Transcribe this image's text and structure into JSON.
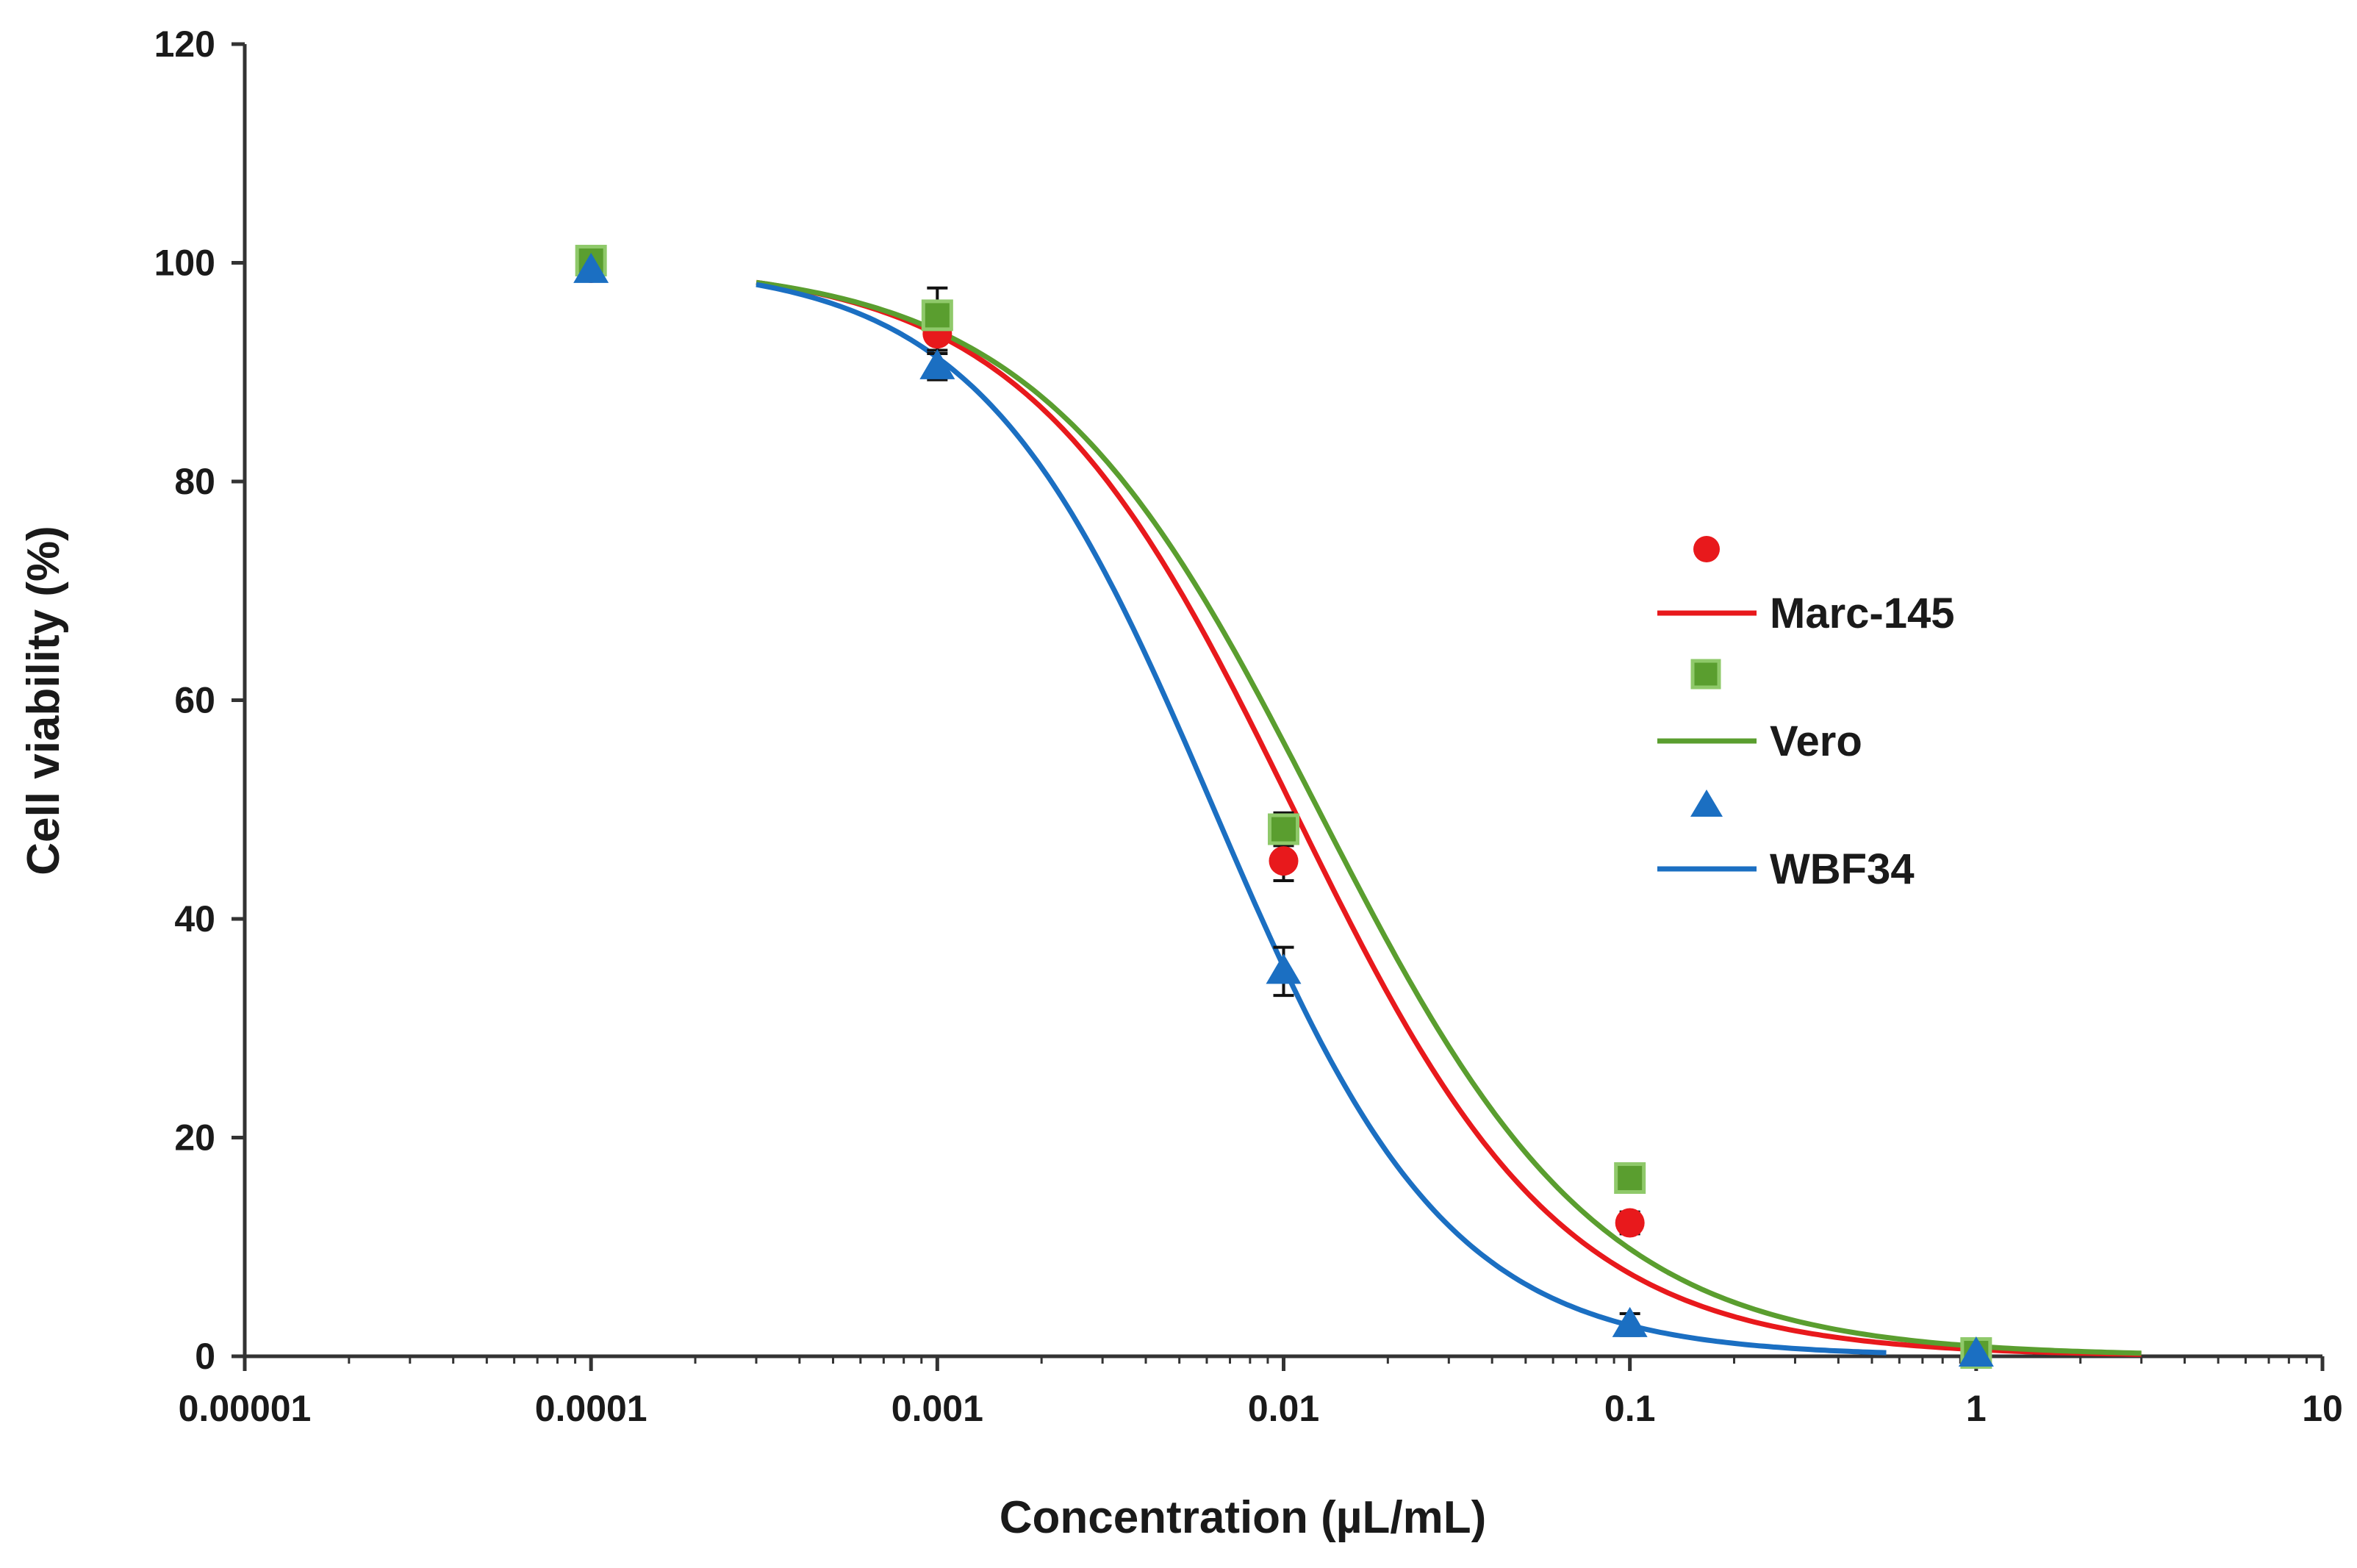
{
  "chart_data": {
    "type": "scatter",
    "title": "",
    "xlabel": "Concentration (µL/mL)",
    "ylabel": "Cell viability (%)",
    "xscale": "log",
    "xlim": [
      1e-05,
      10
    ],
    "ylim": [
      0,
      120
    ],
    "x_ticks": [
      1e-05,
      0.0001,
      0.001,
      0.01,
      0.1,
      1,
      10
    ],
    "x_tick_labels": [
      "0.00001",
      "0.0001",
      "0.001",
      "0.01",
      "0.1",
      "1",
      "10"
    ],
    "y_ticks": [
      0,
      20,
      40,
      60,
      80,
      100,
      120
    ],
    "y_tick_labels": [
      "0",
      "20",
      "40",
      "60",
      "80",
      "100",
      "120"
    ],
    "grid": false,
    "legend_position": "right",
    "series": [
      {
        "name": "Marc-145",
        "color": "#e8191c",
        "marker": "circle",
        "x": [
          0.0001,
          0.001,
          0.01,
          0.1,
          1
        ],
        "y": [
          99.5,
          93.5,
          45.3,
          12.2,
          0.3
        ],
        "err": [
          0.8,
          1.5,
          1.8,
          1.0,
          0.3
        ],
        "fit": {
          "model": "sigmoid",
          "ic50": 0.0107,
          "hill": 1.12,
          "x_range": [
            0.0003,
            3
          ]
        }
      },
      {
        "name": "Vero",
        "color": "#5a9e2f",
        "marker": "square",
        "x": [
          0.0001,
          0.001,
          0.01,
          0.1,
          1
        ],
        "y": [
          100.2,
          95.2,
          48.2,
          16.3,
          0.3
        ],
        "err": [
          0.8,
          2.5,
          1.5,
          1.0,
          0.3
        ],
        "fit": {
          "model": "sigmoid",
          "ic50": 0.0126,
          "hill": 1.07,
          "x_range": [
            0.0003,
            3
          ]
        }
      },
      {
        "name": "WBF34",
        "color": "#1b6fc2",
        "marker": "triangle",
        "x": [
          0.0001,
          0.001,
          0.01,
          0.1,
          1
        ],
        "y": [
          99.3,
          90.5,
          35.2,
          2.9,
          0.2
        ],
        "err": [
          0.6,
          1.2,
          2.2,
          1.0,
          0.3
        ],
        "fit": {
          "model": "sigmoid",
          "ic50": 0.0063,
          "hill": 1.28,
          "x_range": [
            0.0003,
            0.55
          ]
        }
      }
    ]
  }
}
